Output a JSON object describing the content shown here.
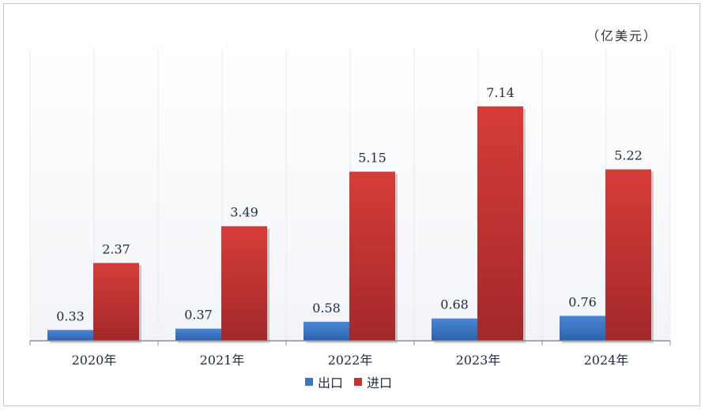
{
  "unit_label": "（亿美元）",
  "colors": {
    "export": "#3a76c4",
    "import": "#c83330"
  },
  "chart_data": {
    "type": "bar",
    "categories": [
      "2020年",
      "2021年",
      "2022年",
      "2023年",
      "2024年"
    ],
    "series": [
      {
        "name": "出口",
        "values": [
          0.33,
          0.37,
          0.58,
          0.68,
          0.76
        ]
      },
      {
        "name": "进口",
        "values": [
          2.37,
          3.49,
          5.15,
          7.14,
          5.22
        ]
      }
    ],
    "ylim": [
      0,
      8
    ],
    "legend_position": "bottom",
    "grid": false
  }
}
